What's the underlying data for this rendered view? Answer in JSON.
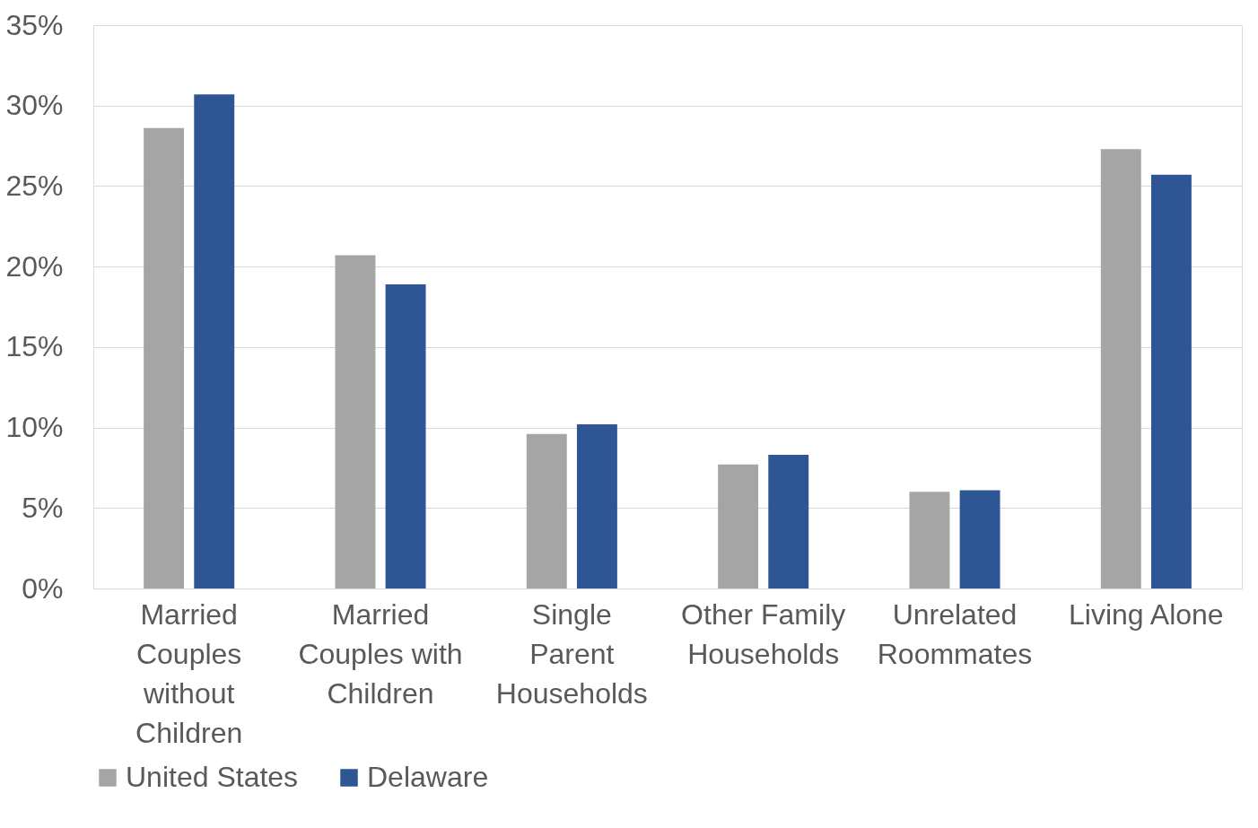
{
  "chart_data": {
    "type": "bar",
    "categories": [
      "Married Couples without Children",
      "Married Couples with Children",
      "Single Parent Households",
      "Other Family Households",
      "Unrelated Roommates",
      "Living Alone"
    ],
    "series": [
      {
        "name": "United States",
        "color": "#a5a5a5",
        "values": [
          28.6,
          20.7,
          9.6,
          7.7,
          6.0,
          27.3
        ]
      },
      {
        "name": "Delaware",
        "color": "#2e5594",
        "values": [
          30.7,
          18.9,
          10.2,
          8.3,
          6.1,
          25.7
        ]
      }
    ],
    "ylim": [
      0,
      35
    ],
    "yticks": [
      {
        "value": 0,
        "label": "0%"
      },
      {
        "value": 5,
        "label": "5%"
      },
      {
        "value": 10,
        "label": "10%"
      },
      {
        "value": 15,
        "label": "15%"
      },
      {
        "value": 20,
        "label": "20%"
      },
      {
        "value": 25,
        "label": "25%"
      },
      {
        "value": 30,
        "label": "30%"
      },
      {
        "value": 35,
        "label": "35%"
      }
    ],
    "grid": "y",
    "legend": "bottom"
  }
}
